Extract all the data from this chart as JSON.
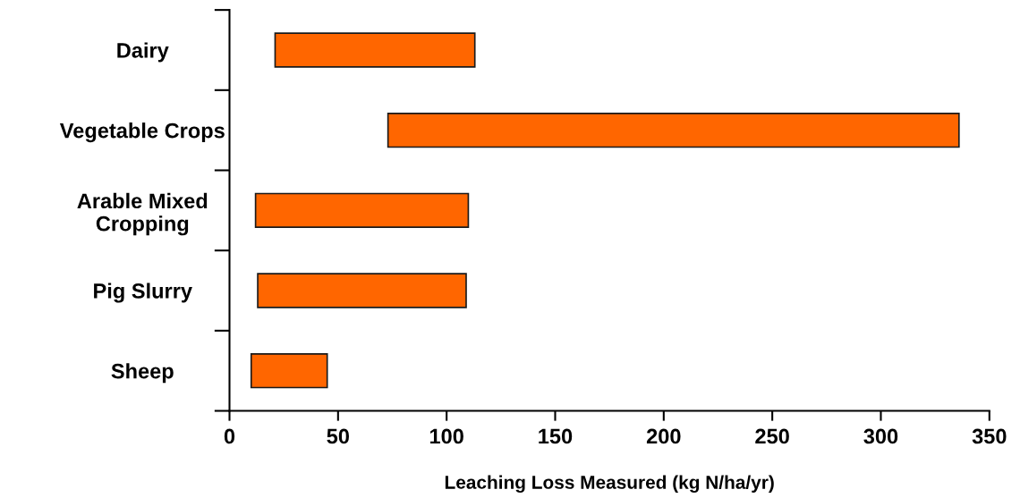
{
  "chart_data": {
    "type": "bar",
    "orientation": "horizontal",
    "xlabel": "Leaching Loss Measured (kg N/ha/yr)",
    "categories": [
      "Dairy",
      "Vegetable Crops",
      "Arable Mixed\nCropping",
      "Pig Slurry",
      "Sheep"
    ],
    "base": [
      21,
      73,
      12,
      13,
      10
    ],
    "values": [
      92,
      263,
      98,
      96,
      35
    ],
    "color": "#ff6600",
    "xlim": [
      0,
      350
    ],
    "xticks": [
      0,
      50,
      100,
      150,
      200,
      250,
      300,
      350
    ],
    "grid": false,
    "legend": false
  }
}
